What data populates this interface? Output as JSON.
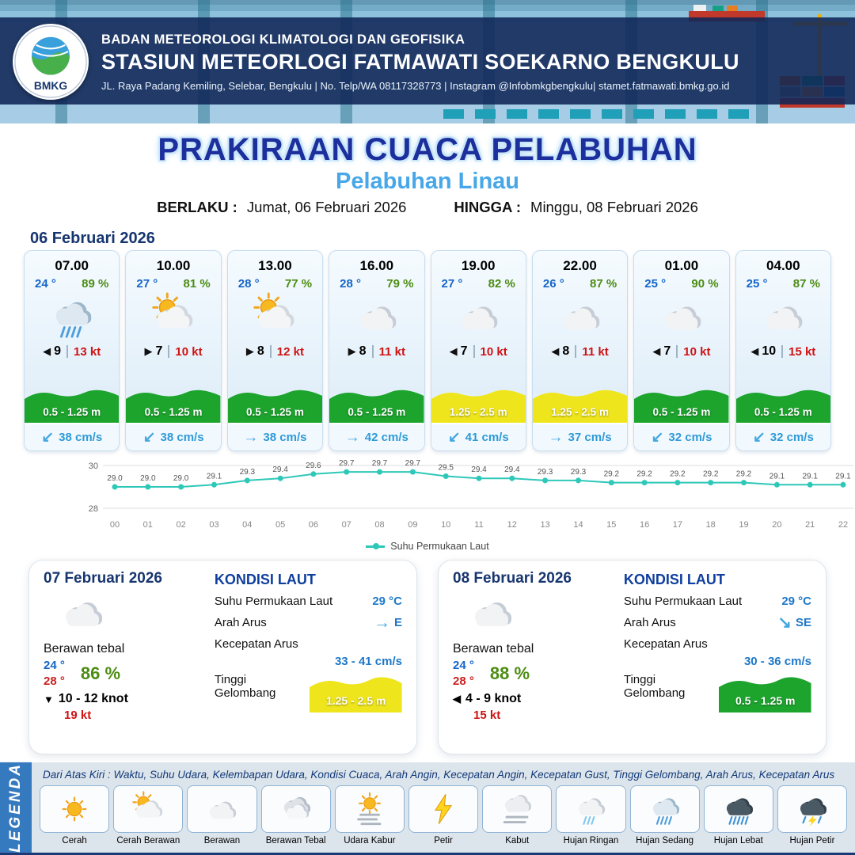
{
  "header": {
    "logo_text": "BMKG",
    "line1": "BADAN METEOROLOGI KLIMATOLOGI DAN GEOFISIKA",
    "line2": "STASIUN METEORLOGI FATMAWATI SOEKARNO BENGKULU",
    "line3": "JL.  Raya Padang Kemiling, Selebar, Bengkulu | No. Telp/WA 08117328773 | Instagram @Infobmkgbengkulu| stamet.fatmawati.bmkg.go.id"
  },
  "title": {
    "main": "PRAKIRAAN CUACA PELABUHAN",
    "subtitle": "Pelabuhan Linau",
    "berlaku_label": "BERLAKU :",
    "berlaku_value": "Jumat, 06 Februari 2026",
    "hingga_label": "HINGGA :",
    "hingga_value": "Minggu, 08 Februari 2026"
  },
  "forecast": {
    "date": "06 Februari 2026",
    "cards": [
      {
        "time": "07.00",
        "temp": "24 °",
        "humidity": "89 %",
        "icon": "rain-moderate",
        "wind_dir": "◀",
        "wind_speed": "9",
        "gust": "13 kt",
        "wave": "0.5 - 1.25 m",
        "wave_color": "green",
        "current_dir": "↙",
        "current": "38 cm/s"
      },
      {
        "time": "10.00",
        "temp": "27 °",
        "humidity": "81 %",
        "icon": "sun-cloud",
        "wind_dir": "▶",
        "wind_speed": "7",
        "gust": "10 kt",
        "wave": "0.5 - 1.25 m",
        "wave_color": "green",
        "current_dir": "↙",
        "current": "38 cm/s"
      },
      {
        "time": "13.00",
        "temp": "28 °",
        "humidity": "77 %",
        "icon": "sun-cloud",
        "wind_dir": "▶",
        "wind_speed": "8",
        "gust": "12 kt",
        "wave": "0.5 - 1.25 m",
        "wave_color": "green",
        "current_dir": "→",
        "current": "38 cm/s"
      },
      {
        "time": "16.00",
        "temp": "28 °",
        "humidity": "79 %",
        "icon": "cloud",
        "wind_dir": "▶",
        "wind_speed": "8",
        "gust": "11 kt",
        "wave": "0.5 - 1.25 m",
        "wave_color": "green",
        "current_dir": "→",
        "current": "42 cm/s"
      },
      {
        "time": "19.00",
        "temp": "27 °",
        "humidity": "82 %",
        "icon": "cloud",
        "wind_dir": "◀",
        "wind_speed": "7",
        "gust": "10 kt",
        "wave": "1.25 - 2.5 m",
        "wave_color": "yellow",
        "current_dir": "↙",
        "current": "41 cm/s"
      },
      {
        "time": "22.00",
        "temp": "26 °",
        "humidity": "87 %",
        "icon": "cloud",
        "wind_dir": "◀",
        "wind_speed": "8",
        "gust": "11 kt",
        "wave": "1.25 - 2.5 m",
        "wave_color": "yellow",
        "current_dir": "→",
        "current": "37 cm/s"
      },
      {
        "time": "01.00",
        "temp": "25 °",
        "humidity": "90 %",
        "icon": "cloud",
        "wind_dir": "◀",
        "wind_speed": "7",
        "gust": "10 kt",
        "wave": "0.5 - 1.25 m",
        "wave_color": "green",
        "current_dir": "↙",
        "current": "32 cm/s"
      },
      {
        "time": "04.00",
        "temp": "25 °",
        "humidity": "87 %",
        "icon": "cloud",
        "wind_dir": "◀",
        "wind_speed": "10",
        "gust": "15 kt",
        "wave": "0.5 - 1.25 m",
        "wave_color": "green",
        "current_dir": "↙",
        "current": "32 cm/s"
      }
    ]
  },
  "chart_data": {
    "type": "line",
    "title": "",
    "x": [
      "00",
      "01",
      "02",
      "03",
      "04",
      "05",
      "06",
      "07",
      "08",
      "09",
      "10",
      "11",
      "12",
      "13",
      "14",
      "15",
      "16",
      "17",
      "18",
      "19",
      "20",
      "21",
      "22"
    ],
    "values": [
      29.0,
      29.0,
      29.0,
      29.1,
      29.3,
      29.4,
      29.6,
      29.7,
      29.7,
      29.7,
      29.5,
      29.4,
      29.4,
      29.3,
      29.3,
      29.2,
      29.2,
      29.2,
      29.2,
      29.2,
      29.1,
      29.1,
      29.1
    ],
    "ylim": [
      28,
      30
    ],
    "yticks": [
      28,
      30
    ],
    "legend": "Suhu Permukaan Laut",
    "line_color": "#2ec8b8",
    "grid": true,
    "legend_position": "bottom"
  },
  "day_cards": [
    {
      "date": "07 Februari 2026",
      "icon": "cloud",
      "condition": "Berawan tebal",
      "temp_min": "24 °",
      "temp_max": "28 °",
      "humidity": "86 %",
      "wind_dir": "▼",
      "wind": "10 - 12 knot",
      "gust": "19 kt",
      "sea_title": "KONDISI LAUT",
      "sst_label": "Suhu Permukaan Laut",
      "sst": "29 °C",
      "current_dir_label": "Arah Arus",
      "current_dir_arrow": "→",
      "current_dir": "E",
      "current_speed_label": "Kecepatan Arus",
      "current_speed": "33 - 41 cm/s",
      "wave_label": "Tinggi Gelombang",
      "wave": "1.25 - 2.5 m",
      "wave_color": "yellow"
    },
    {
      "date": "08 Februari 2026",
      "icon": "cloud",
      "condition": "Berawan tebal",
      "temp_min": "24 °",
      "temp_max": "28 °",
      "humidity": "88 %",
      "wind_dir": "◀",
      "wind": "4 - 9 knot",
      "gust": "15 kt",
      "sea_title": "KONDISI LAUT",
      "sst_label": "Suhu Permukaan Laut",
      "sst": "29 °C",
      "current_dir_label": "Arah Arus",
      "current_dir_arrow": "↘",
      "current_dir": "SE",
      "current_speed_label": "Kecepatan Arus",
      "current_speed": "30 - 36 cm/s",
      "wave_label": "Tinggi Gelombang",
      "wave": "0.5 - 1.25 m",
      "wave_color": "green"
    }
  ],
  "legend": {
    "title": "LEGENDA",
    "description": "Dari Atas Kiri : Waktu, Suhu Udara, Kelembapan Udara, Kondisi Cuaca, Arah Angin, Kecepatan Angin, Kecepatan Gust, Tinggi Gelombang, Arah Arus, Kecepatan Arus",
    "items": [
      {
        "label": "Cerah",
        "icon": "sun"
      },
      {
        "label": "Cerah Berawan",
        "icon": "sun-cloud"
      },
      {
        "label": "Berawan",
        "icon": "cloud"
      },
      {
        "label": "Berawan Tebal",
        "icon": "cloud-thick"
      },
      {
        "label": "Udara Kabur",
        "icon": "haze"
      },
      {
        "label": "Petir",
        "icon": "lightning"
      },
      {
        "label": "Kabut",
        "icon": "fog"
      },
      {
        "label": "Hujan Ringan",
        "icon": "rain-light"
      },
      {
        "label": "Hujan Sedang",
        "icon": "rain-moderate"
      },
      {
        "label": "Hujan Lebat",
        "icon": "rain-heavy"
      },
      {
        "label": "Hujan Petir",
        "icon": "storm"
      }
    ]
  },
  "colors": {
    "accent_navy": "#1c2f9c",
    "accent_lightblue": "#47a7e8",
    "temp_blue": "#1565c8",
    "temp_red": "#cc2020",
    "humidity_green": "#4c8c12",
    "gust_red": "#cf1212",
    "current_blue": "#2e9ad8",
    "wave_green": "#1ca42d",
    "wave_yellow": "#efe51c",
    "chart_line": "#2ec8b8"
  }
}
